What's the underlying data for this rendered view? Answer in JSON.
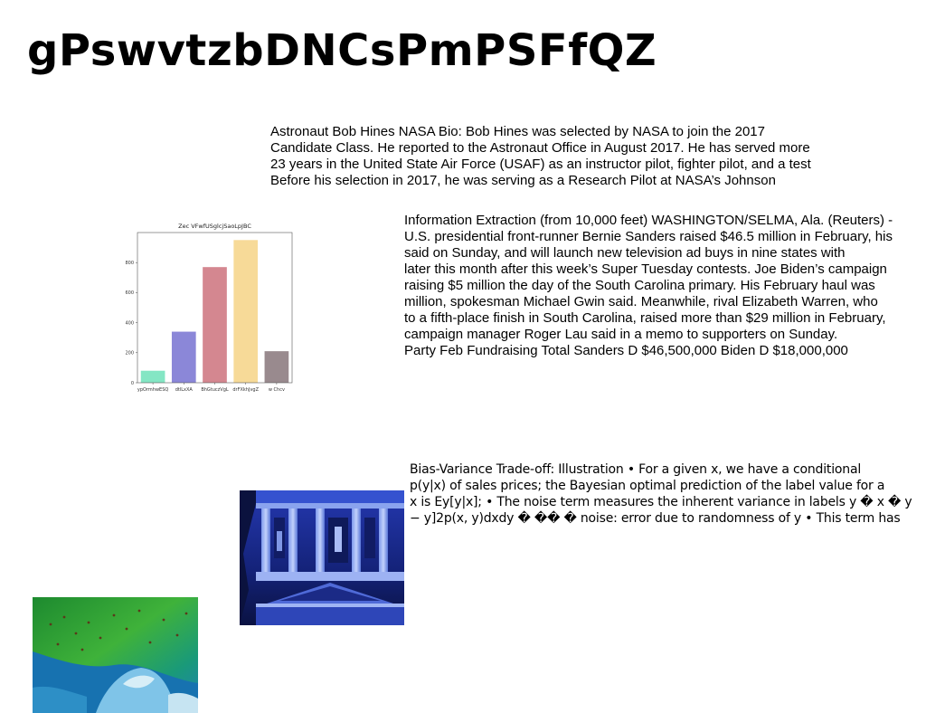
{
  "page": {
    "title": "gPswvtzbDNCsPmPSFfQZ"
  },
  "bio_paragraph": {
    "lines": [
      "Astronaut Bob Hines NASA Bio: Bob Hines was selected by NASA to join the 2017",
      "Candidate Class. He reported to the Astronaut Office in August 2017. He has served more",
      "23 years in the United State Air Force (USAF) as an instructor pilot, fighter pilot, and a test",
      "Before his selection in 2017, he was serving as a Research Pilot at NASA’s Johnson"
    ]
  },
  "news_paragraph": {
    "lines": [
      "Information Extraction (from 10,000 feet) WASHINGTON/SELMA, Ala. (Reuters) -",
      "U.S. presidential front-runner Bernie Sanders raised $46.5 million in February, his",
      "said on Sunday, and will launch new television ad buys in nine states with",
      "later this month after this week’s Super Tuesday contests. Joe Biden’s campaign",
      "raising $5 million the day of the South Carolina primary. His February haul was",
      "million, spokesman Michael Gwin said. Meanwhile, rival Elizabeth Warren, who",
      "to a fifth-place finish in South Carolina, raised more than $29 million in February,",
      "campaign manager Roger Lau said in a memo to supporters on Sunday.",
      "Party Feb Fundraising Total Sanders D $46,500,000 Biden D $18,000,000"
    ]
  },
  "ml_paragraph": {
    "lines": [
      "Bias-Variance Trade-off: Illustration • For a given x, we have a conditional",
      "p(y|x) of sales prices; the Bayesian optimal prediction of the label value for a",
      "x is Ey[y|x]; • The noise term measures the inherent variance in labels y � x � y",
      "− y]2p(x, y)dxdy � �� � noise: error due to randomness of y • This term has"
    ]
  },
  "chart_data": {
    "type": "bar",
    "title": "Zec VFwfUSglcjSaoLpJBC",
    "categories": [
      "ypOrmhwESQ",
      "dtlLxXA",
      "BhGtuczVgL",
      "drFXkhJvgZ",
      "w Chcv"
    ],
    "values": [
      80,
      340,
      770,
      950,
      210
    ],
    "colors": [
      "#84e6c4",
      "#8b87d8",
      "#d48790",
      "#f7da98",
      "#998a8e"
    ],
    "ylim": [
      0,
      1000
    ],
    "yticks": [
      0,
      200,
      400,
      600,
      800
    ],
    "xlabel": "",
    "ylabel": "",
    "grid": false
  },
  "images": {
    "temple": {
      "description_icon": "temple-facade-photo",
      "colors": [
        "#1c2a8c",
        "#3e5ad6",
        "#9fb6f2",
        "#0b123e"
      ]
    },
    "sea": {
      "description_icon": "aerial-sea-photo",
      "colors": [
        "#0e8a3a",
        "#4fbf3c",
        "#1f7fb4",
        "#a8d6e8"
      ]
    }
  }
}
